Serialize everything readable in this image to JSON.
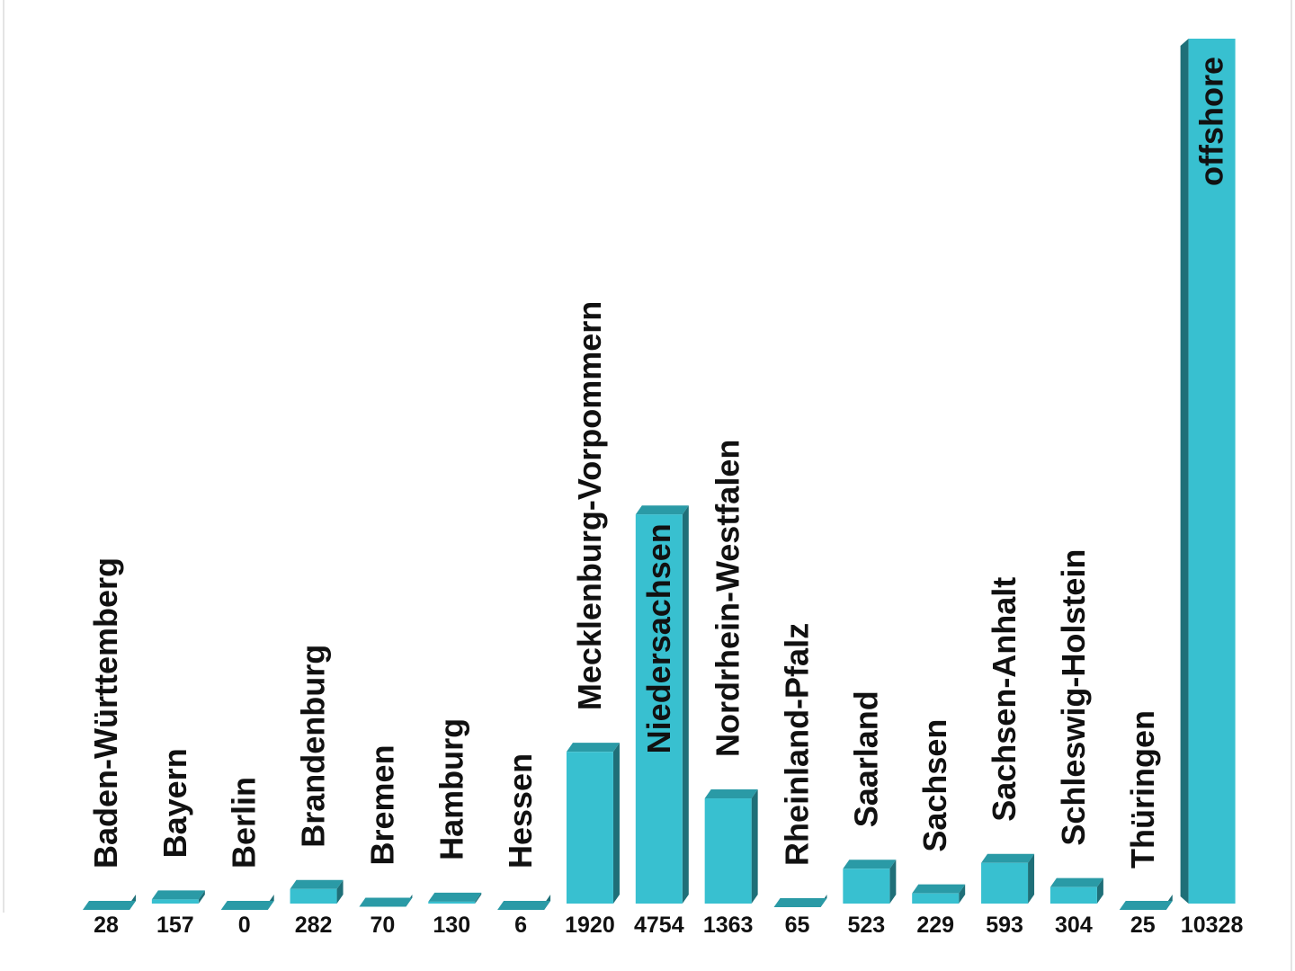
{
  "chart_data": {
    "type": "bar",
    "title": "",
    "xlabel": "",
    "ylabel": "",
    "categories": [
      "Baden-Württemberg",
      "Bayern",
      "Berlin",
      "Brandenburg",
      "Bremen",
      "Hamburg",
      "Hessen",
      "Mecklenburg-Vorpommern",
      "Niedersachsen",
      "Nordrhein-Westfalen",
      "Rheinland-Pfalz",
      "Saarland",
      "Sachsen",
      "Sachsen-Anhalt",
      "Schleswig-Holstein",
      "Thüringen",
      "offshore"
    ],
    "values": [
      28,
      157,
      0,
      282,
      70,
      130,
      6,
      1920,
      4754,
      1363,
      65,
      523,
      229,
      593,
      304,
      25,
      10328
    ],
    "value_labels": [
      "28",
      "157",
      "0",
      "282",
      "70",
      "130",
      "6",
      "1920",
      "4754",
      "1363",
      "65",
      "523",
      "229",
      "593",
      "304",
      "25",
      "10328"
    ],
    "ylim": [
      0,
      10328
    ],
    "grid": false,
    "legend": "none",
    "bar_style": "3d",
    "colors": {
      "bar": "#38c0d0",
      "bar_top": "#2a9aa6",
      "bar_side": "#1f6f78",
      "text": "#111111"
    }
  }
}
